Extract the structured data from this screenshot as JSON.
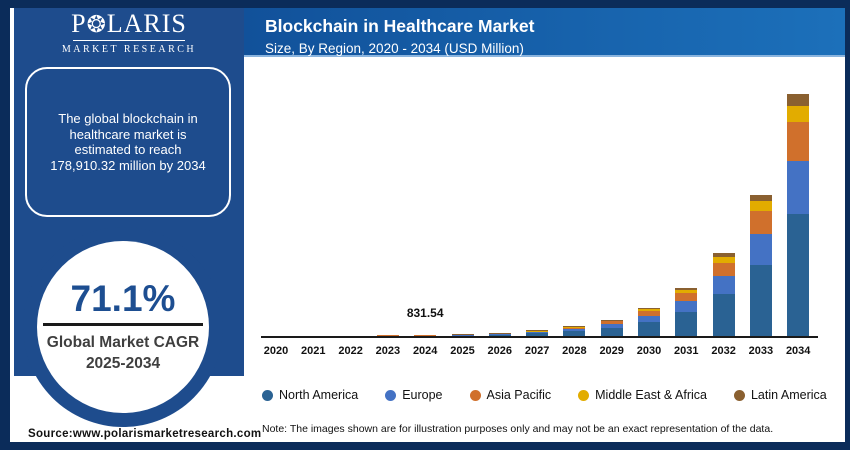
{
  "brand": {
    "logo_p": "P",
    "logo_star": "❂",
    "logo_rest": "LARIS",
    "logo_sub": "MARKET RESEARCH"
  },
  "sidebar": {
    "infobox_lines": [
      "The global blockchain in",
      "healthcare market is",
      "estimated to reach",
      "178,910.32 million by 2034"
    ],
    "stat": {
      "value": "71.1%",
      "label_line1": "Global Market CAGR",
      "label_line2": "2025-2034"
    },
    "source": "Source:www.polarismarketresearch.com"
  },
  "header": {
    "title": "Blockchain in Healthcare Market",
    "subtitle": "Size, By Region, 2020 - 2034 (USD Million)"
  },
  "footnote": "Note: The images shown are for illustration purposes only and may not be an exact representation of the data.",
  "chart_data": {
    "type": "bar",
    "stacked": true,
    "title": "Blockchain in Healthcare Market Size, By Region, 2020 - 2034 (USD Million)",
    "xlabel": "",
    "ylabel": "USD Million",
    "grid": false,
    "legend_position": "bottom",
    "ylim": [
      0,
      180000
    ],
    "categories": [
      "2020",
      "2021",
      "2022",
      "2023",
      "2024",
      "2025",
      "2026",
      "2027",
      "2028",
      "2029",
      "2030",
      "2031",
      "2032",
      "2033",
      "2034"
    ],
    "series": [
      {
        "name": "North America",
        "color": "#2a6293",
        "values": [
          48.9,
          83.7,
          143.2,
          245.0,
          419.1,
          717.1,
          1226.9,
          2099.3,
          3591.9,
          6145.7,
          10515.3,
          17991.6,
          30783.6,
          52670.8,
          90170.8
        ]
      },
      {
        "name": "Europe",
        "color": "#4472c4",
        "values": [
          21.3,
          36.5,
          62.5,
          106.9,
          182.9,
          313.0,
          535.6,
          916.3,
          1567.9,
          2682.6,
          4590.0,
          7853.5,
          13437.3,
          22991.2,
          39360.3
        ]
      },
      {
        "name": "Asia Pacific",
        "color": "#d0702c",
        "values": [
          15.4,
          26.4,
          45.2,
          77.3,
          132.2,
          226.2,
          387.1,
          662.3,
          1133.1,
          1938.8,
          3317.3,
          5675.9,
          9711.5,
          16616.4,
          28446.7
        ]
      },
      {
        "name": "Middle East & Africa",
        "color": "#e2ac00",
        "values": [
          6.7,
          11.5,
          19.6,
          33.5,
          57.4,
          98.2,
          168.0,
          287.4,
          491.7,
          841.4,
          1439.6,
          2463.1,
          4214.4,
          7210.9,
          12344.8
        ]
      },
      {
        "name": "Latin America",
        "color": "#8a6030",
        "values": [
          4.7,
          8.0,
          13.6,
          23.3,
          39.9,
          68.3,
          116.9,
          199.9,
          342.1,
          585.3,
          1001.5,
          1713.5,
          2931.8,
          5016.3,
          8587.7
        ]
      }
    ],
    "annotations": [
      {
        "category": "2024",
        "text": "831.54"
      }
    ]
  }
}
